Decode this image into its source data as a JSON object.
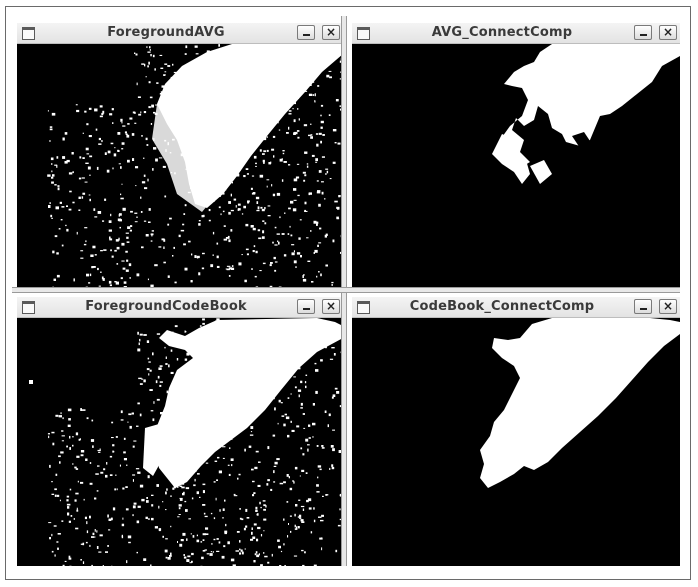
{
  "windows": [
    {
      "title": "ForegroundAVG",
      "min_label": "_",
      "close_label": "×"
    },
    {
      "title": "AVG_ConnectComp",
      "min_label": "_",
      "close_label": "×"
    },
    {
      "title": "ForegroundCodeBook",
      "min_label": "_",
      "close_label": "×"
    },
    {
      "title": "CodeBook_ConnectComp",
      "min_label": "_",
      "close_label": "×"
    }
  ],
  "icons": {
    "window_menu": "window-menu-icon",
    "minimize": "minimize-icon",
    "close": "close-icon"
  },
  "colors": {
    "mask_background": "#000000",
    "mask_foreground": "#ffffff",
    "titlebar": "#e8e8e8"
  }
}
